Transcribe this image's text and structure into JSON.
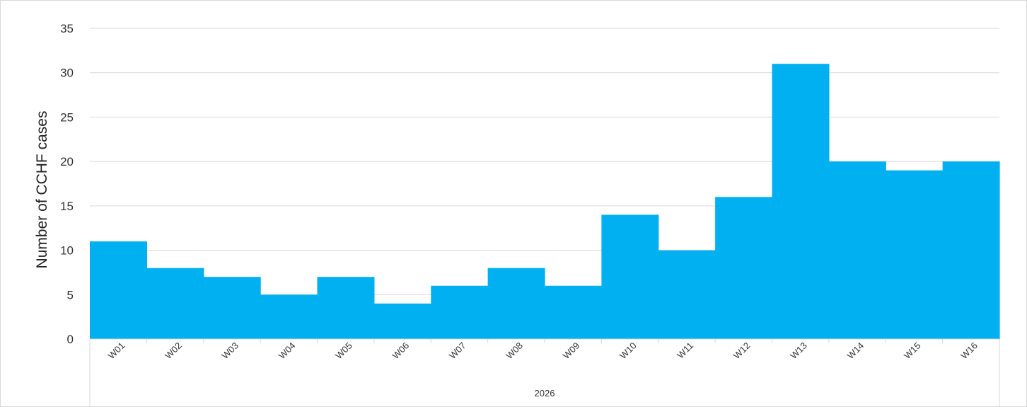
{
  "chart_data": {
    "type": "bar",
    "categories": [
      "W01",
      "W02",
      "W03",
      "W04",
      "W05",
      "W06",
      "W07",
      "W08",
      "W09",
      "W10",
      "W11",
      "W12",
      "W13",
      "W14",
      "W15",
      "W16"
    ],
    "values": [
      11,
      8,
      7,
      5,
      7,
      4,
      6,
      8,
      6,
      14,
      10,
      16,
      31,
      20,
      19,
      20
    ],
    "group_label": "2026",
    "title": "",
    "xlabel": "",
    "ylabel": "Number of CCHF cases",
    "ylim": [
      0,
      35
    ],
    "yticks": [
      0,
      5,
      10,
      15,
      20,
      25,
      30,
      35
    ],
    "grid": true,
    "bar_color": "#00b0f0",
    "grid_color": "#d9d9d9"
  }
}
